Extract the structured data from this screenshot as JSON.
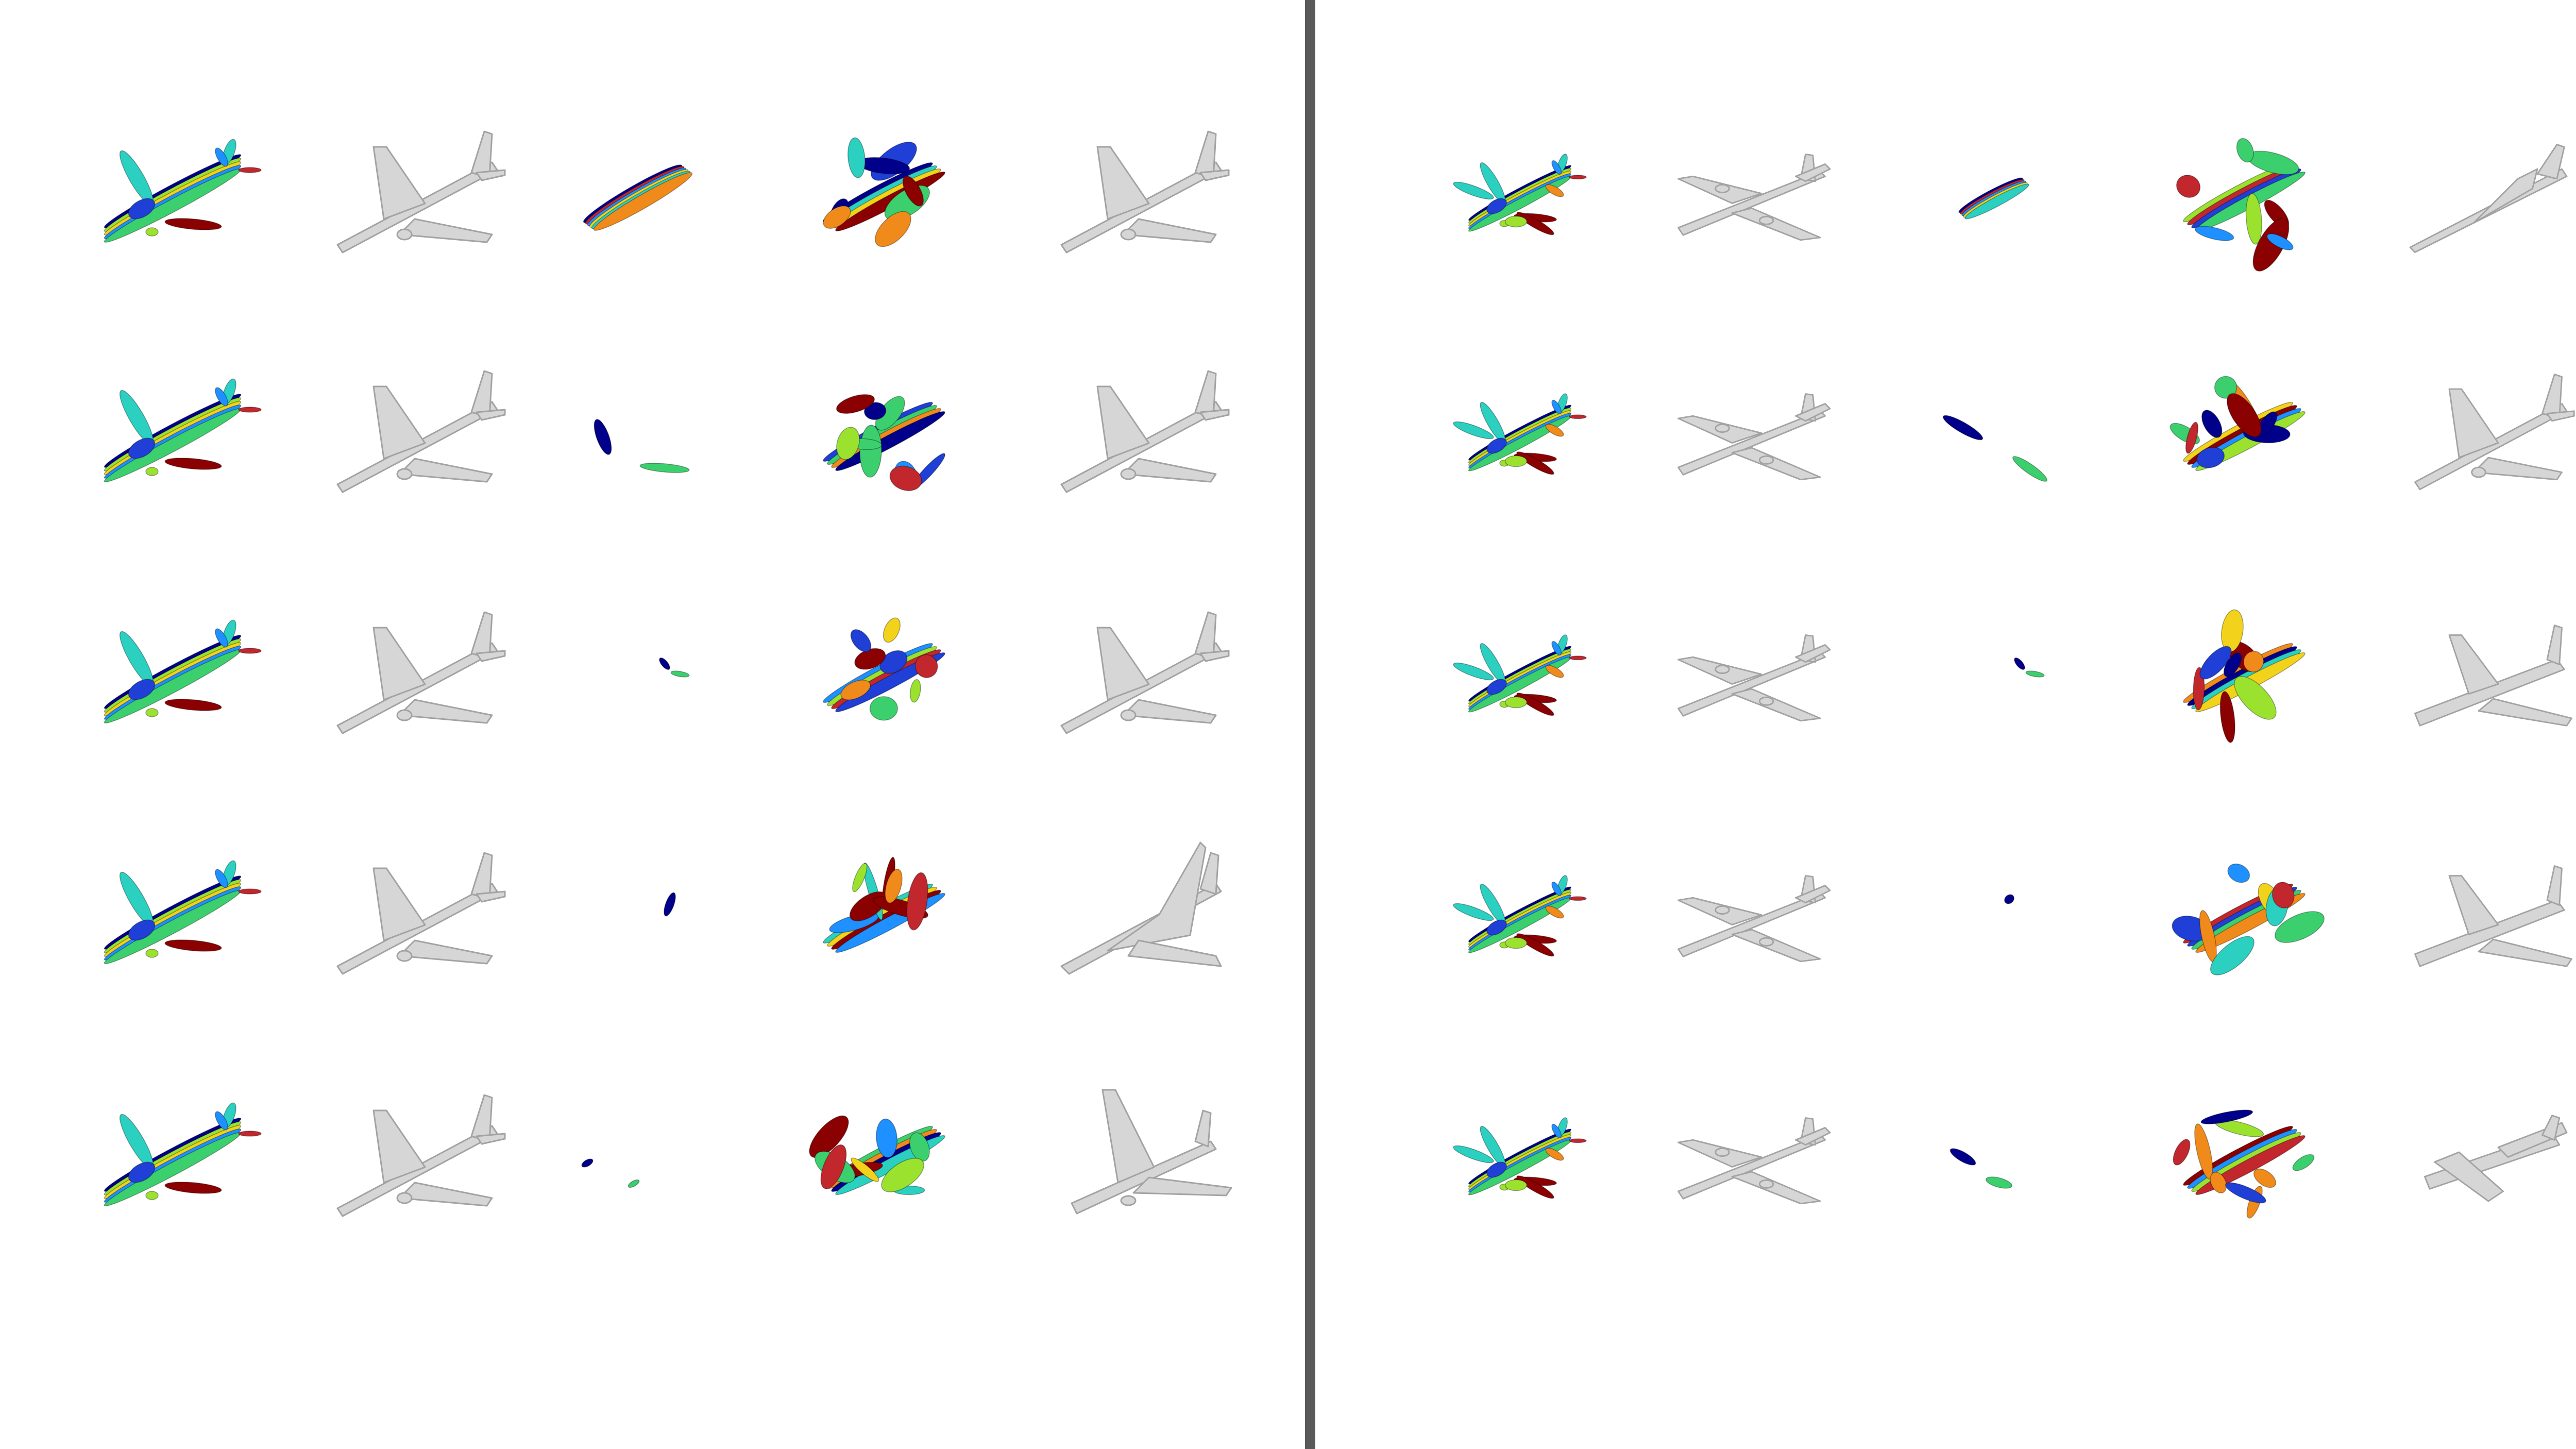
{
  "figure": {
    "background": "#ffffff",
    "divider_color": "#595959",
    "plane_fill": "#d6d6d6",
    "plane_stroke": "#a3a3a3",
    "part_colors": [
      "#00008b",
      "#1f3fd6",
      "#1e90ff",
      "#2bd0c0",
      "#3ccf6e",
      "#9be22f",
      "#f2d21a",
      "#f08a1a",
      "#c1272d",
      "#8b0000"
    ],
    "panels": [
      {
        "name": "left",
        "plane_style": "airliner",
        "rows": [
          {
            "fine_count": 5,
            "coarse_layout": "cluster",
            "edited_count": 8,
            "edited_plane": "airliner"
          },
          {
            "fine_count": 5,
            "coarse_layout": "pair",
            "edited_count": 9,
            "edited_plane": "airliner"
          },
          {
            "fine_count": 5,
            "coarse_layout": "tiny-pair",
            "edited_count": 8,
            "edited_plane": "airliner"
          },
          {
            "fine_count": 5,
            "coarse_layout": "single",
            "edited_count": 8,
            "edited_plane": "delta"
          },
          {
            "fine_count": 5,
            "coarse_layout": "tiny-pair-low",
            "edited_count": 9,
            "edited_plane": "stubby"
          }
        ]
      },
      {
        "name": "right",
        "plane_style": "bomber",
        "rows": [
          {
            "fine_count": 5,
            "coarse_layout": "cluster-small",
            "edited_count": 8,
            "edited_plane": "jet"
          },
          {
            "fine_count": 5,
            "coarse_layout": "pair-wide",
            "edited_count": 9,
            "edited_plane": "airliner"
          },
          {
            "fine_count": 5,
            "coarse_layout": "tiny-pair",
            "edited_count": 8,
            "edited_plane": "jumbo"
          },
          {
            "fine_count": 5,
            "coarse_layout": "dot",
            "edited_count": 8,
            "edited_plane": "jumbo"
          },
          {
            "fine_count": 5,
            "coarse_layout": "pair-low",
            "edited_count": 9,
            "edited_plane": "prop"
          }
        ]
      }
    ]
  }
}
